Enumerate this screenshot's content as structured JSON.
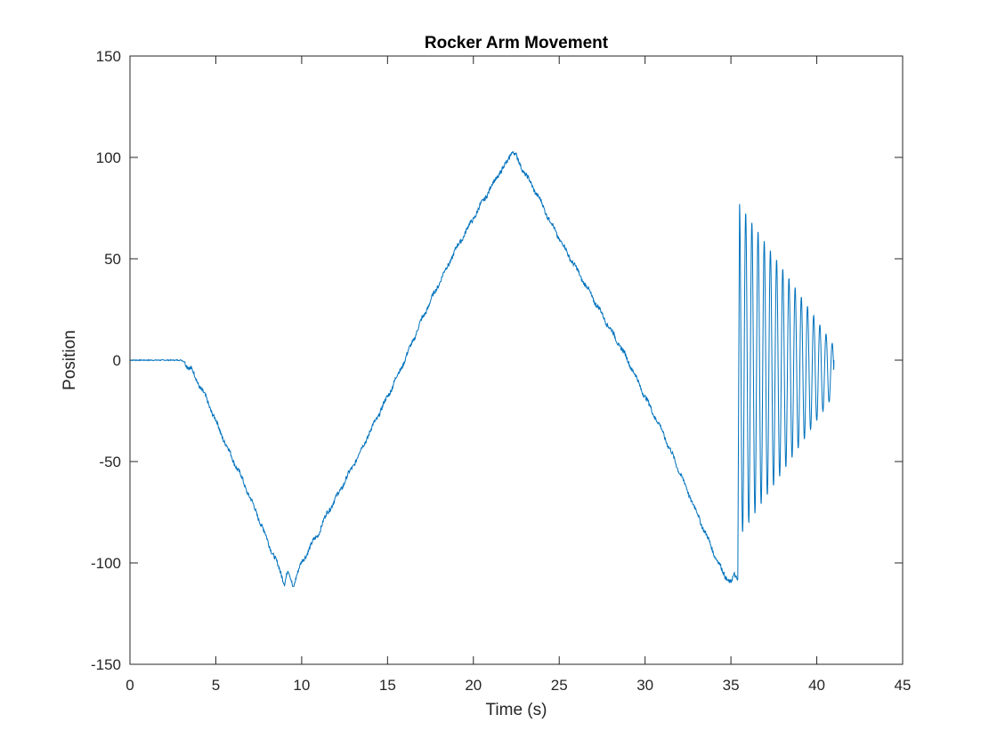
{
  "chart_data": {
    "type": "line",
    "title": "Rocker Arm Movement",
    "xlabel": "Time (s)",
    "ylabel": "Position",
    "xlim": [
      0,
      45
    ],
    "ylim": [
      -150,
      150
    ],
    "xticks": [
      0,
      5,
      10,
      15,
      20,
      25,
      30,
      35,
      40,
      45
    ],
    "yticks": [
      -150,
      -100,
      -50,
      0,
      50,
      100,
      150
    ],
    "grid": false,
    "line_color": "#0072BD",
    "axis_color": "#262626",
    "series": [
      {
        "x": [
          0,
          1,
          2,
          3.0,
          3.2,
          3.6,
          4.5,
          5.5,
          6.5,
          7.5,
          8.3,
          8.8,
          9.0,
          9.2,
          9.4,
          9.5,
          9.7,
          10.0,
          10.5,
          11.0,
          11.5,
          12.0,
          13.0,
          14.0,
          15.0,
          16.0,
          17.0,
          18.0,
          19.0,
          20.0,
          21.0,
          21.5,
          22.0,
          22.2,
          22.4,
          22.7,
          23.0,
          23.5,
          24.0,
          24.5,
          25.0,
          26.0,
          27.0,
          28.0,
          29.0,
          30.0,
          31.0,
          32.0,
          33.0,
          34.0,
          34.5,
          34.8,
          35.0,
          35.2,
          35.4
        ],
        "y": [
          0,
          0,
          0,
          0,
          -1,
          -5,
          -20,
          -40,
          -58,
          -78,
          -95,
          -105,
          -110,
          -104,
          -109,
          -112,
          -106,
          -100,
          -92,
          -85,
          -75,
          -68,
          -52,
          -35,
          -18,
          0,
          20,
          38,
          55,
          70,
          85,
          92,
          98,
          103,
          102,
          97,
          92,
          85,
          77,
          68,
          60,
          45,
          30,
          15,
          0,
          -18,
          -35,
          -55,
          -75,
          -95,
          -104,
          -108,
          -110,
          -106,
          -108
        ]
      }
    ],
    "oscillation": {
      "start": 35.5,
      "end": 41.0,
      "period": 0.36,
      "offset_start": -5,
      "offset_end": -5,
      "amplitude_start": 82,
      "amplitude_end": 12,
      "peak_first": 77,
      "trough_first": -90,
      "final_value": 0
    }
  }
}
